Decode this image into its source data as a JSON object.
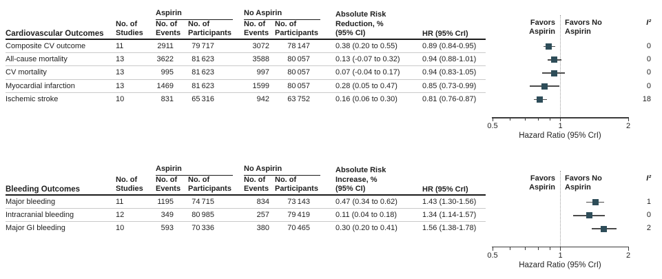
{
  "colors": {
    "marker": "#2e4d59",
    "ci_line": "#4a4a4a",
    "reference_line": "#9a9a9a",
    "header_rule": "#1a1a1a",
    "row_separator": "#c9c9c9"
  },
  "chart_data": [
    {
      "type": "forest",
      "outcome_col_header": "Cardiovascular Outcomes",
      "studies_col_header": "No. of\nStudies",
      "group1_header": "Aspirin",
      "group2_header": "No Aspirin",
      "events1_col_header": "No. of\nEvents",
      "participants1_col_header": "No. of\nParticipants",
      "events2_col_header": "No. of\nEvents",
      "participants2_col_header": "No. of\nParticipants",
      "effect_col_header": "Absolute Risk\nReduction, %\n(95% CI)",
      "hr_col_header": "HR (95% CrI)",
      "favors_left_label": "Favors\nAspirin",
      "favors_right_label": "Favors No\nAspirin",
      "i2_col_header": "I²",
      "axis": {
        "scale": "log",
        "min": 0.5,
        "max": 2,
        "major_ticks": [
          0.5,
          1,
          2
        ],
        "minor_ticks": [
          0.6,
          0.7,
          0.8,
          0.9
        ],
        "reference_line": 1,
        "label": "Hazard Ratio (95% CrI)"
      },
      "rows": [
        {
          "outcome": "Composite CV outcome",
          "studies": "11",
          "aspirin_events": "2911",
          "aspirin_participants": "79 717",
          "no_aspirin_events": "3072",
          "no_aspirin_participants": "78 147",
          "effect": "0.38 (0.20 to 0.55)",
          "hr_text": "0.89 (0.84-0.95)",
          "hr": 0.89,
          "ci_low": 0.84,
          "ci_high": 0.95,
          "i2": "0"
        },
        {
          "outcome": "All-cause mortality",
          "studies": "13",
          "aspirin_events": "3622",
          "aspirin_participants": "81 623",
          "no_aspirin_events": "3588",
          "no_aspirin_participants": "80 057",
          "effect": "0.13 (-0.07 to 0.32)",
          "hr_text": "0.94 (0.88-1.01)",
          "hr": 0.94,
          "ci_low": 0.88,
          "ci_high": 1.01,
          "i2": "0"
        },
        {
          "outcome": "CV mortality",
          "studies": "13",
          "aspirin_events": "995",
          "aspirin_participants": "81 623",
          "no_aspirin_events": "997",
          "no_aspirin_participants": "80 057",
          "effect": "0.07 (-0.04 to 0.17)",
          "hr_text": "0.94 (0.83-1.05)",
          "hr": 0.94,
          "ci_low": 0.83,
          "ci_high": 1.05,
          "i2": "0"
        },
        {
          "outcome": "Myocardial infarction",
          "studies": "13",
          "aspirin_events": "1469",
          "aspirin_participants": "81 623",
          "no_aspirin_events": "1599",
          "no_aspirin_participants": "80 057",
          "effect": "0.28 (0.05 to 0.47)",
          "hr_text": "0.85 (0.73-0.99)",
          "hr": 0.85,
          "ci_low": 0.73,
          "ci_high": 0.99,
          "i2": "0"
        },
        {
          "outcome": "Ischemic stroke",
          "studies": "10",
          "aspirin_events": "831",
          "aspirin_participants": "65 316",
          "no_aspirin_events": "942",
          "no_aspirin_participants": "63 752",
          "effect": "0.16 (0.06 to 0.30)",
          "hr_text": "0.81 (0.76-0.87)",
          "hr": 0.81,
          "ci_low": 0.76,
          "ci_high": 0.87,
          "i2": "18"
        }
      ]
    },
    {
      "type": "forest",
      "outcome_col_header": "Bleeding Outcomes",
      "studies_col_header": "No. of\nStudies",
      "group1_header": "Aspirin",
      "group2_header": "No Aspirin",
      "events1_col_header": "No. of\nEvents",
      "participants1_col_header": "No. of\nParticipants",
      "events2_col_header": "No. of\nEvents",
      "participants2_col_header": "No. of\nParticipants",
      "effect_col_header": "Absolute Risk\nIncrease, %\n(95% CI)",
      "hr_col_header": "HR (95% CrI)",
      "favors_left_label": "Favors\nAspirin",
      "favors_right_label": "Favors No\nAspirin",
      "i2_col_header": "I²",
      "axis": {
        "scale": "log",
        "min": 0.5,
        "max": 2,
        "major_ticks": [
          0.5,
          1,
          2
        ],
        "minor_ticks": [
          0.6,
          0.7,
          0.8,
          0.9
        ],
        "reference_line": 1,
        "label": "Hazard Ratio (95% CrI)"
      },
      "rows": [
        {
          "outcome": "Major bleeding",
          "studies": "11",
          "aspirin_events": "1195",
          "aspirin_participants": "74 715",
          "no_aspirin_events": "834",
          "no_aspirin_participants": "73 143",
          "effect": "0.47 (0.34 to 0.62)",
          "hr_text": "1.43 (1.30-1.56)",
          "hr": 1.43,
          "ci_low": 1.3,
          "ci_high": 1.56,
          "i2": "1"
        },
        {
          "outcome": "Intracranial bleeding",
          "studies": "12",
          "aspirin_events": "349",
          "aspirin_participants": "80 985",
          "no_aspirin_events": "257",
          "no_aspirin_participants": "79 419",
          "effect": "0.11 (0.04 to 0.18)",
          "hr_text": "1.34 (1.14-1.57)",
          "hr": 1.34,
          "ci_low": 1.14,
          "ci_high": 1.57,
          "i2": "0"
        },
        {
          "outcome": "Major GI bleeding",
          "studies": "10",
          "aspirin_events": "593",
          "aspirin_participants": "70 336",
          "no_aspirin_events": "380",
          "no_aspirin_participants": "70 465",
          "effect": "0.30 (0.20 to 0.41)",
          "hr_text": "1.56 (1.38-1.78)",
          "hr": 1.56,
          "ci_low": 1.38,
          "ci_high": 1.78,
          "i2": "2"
        }
      ]
    }
  ]
}
